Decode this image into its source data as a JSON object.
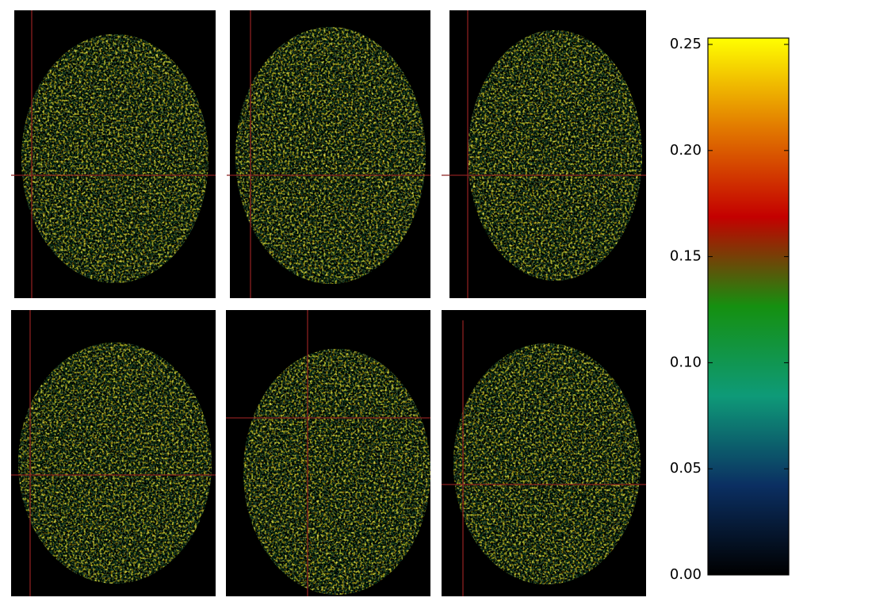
{
  "chart_data": {
    "type": "colorbar",
    "ylim": [
      0,
      0.253
    ],
    "yticks": [
      {
        "value": 0,
        "label": "0.00"
      },
      0.05,
      {
        "value": 0.1,
        "label": "0.10"
      },
      0.15,
      {
        "value": 0.2,
        "label": "0.20"
      },
      0.25
    ],
    "colormap": [
      "#000000",
      "#0b2f62",
      "#0e9a78",
      "#159010",
      "#c40000",
      "#e27a00",
      "#ffff00"
    ]
  }
}
